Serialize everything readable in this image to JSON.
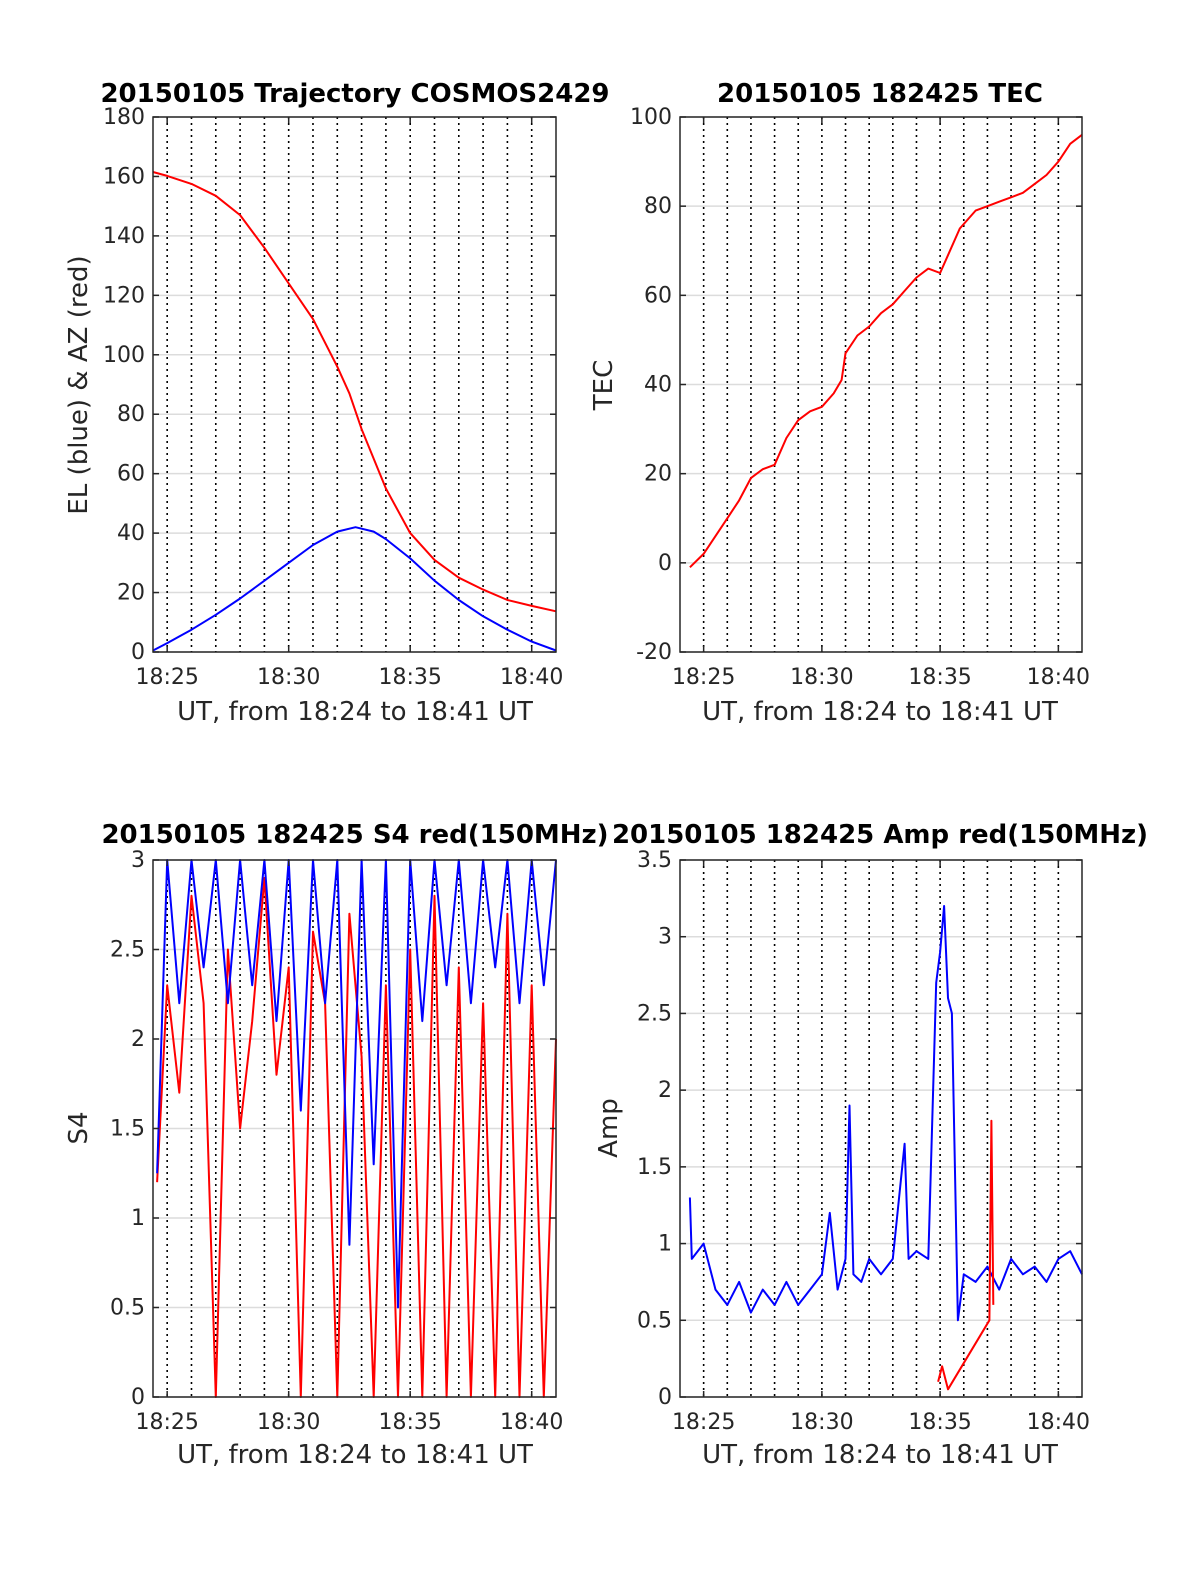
{
  "figure": {
    "background": "#ffffff",
    "colors": {
      "azimuth": "#ff0000",
      "elevation": "#0000ff",
      "s4_red": "#ff0000",
      "s4_blue": "#0000ff",
      "tec": "#ff0000",
      "amp_red": "#ff0000",
      "amp_blue": "#0000ff",
      "grid": "#dcdcdc",
      "vline": "#000000"
    }
  },
  "chart_data": [
    {
      "id": "trajectory",
      "type": "line",
      "title": "20150105 Trajectory COSMOS2429",
      "xlabel": "UT, from 18:24 to 18:41 UT",
      "ylabel": "EL (blue) & AZ (red)",
      "xlim": [
        "18:24:25",
        "18:41:00"
      ],
      "ylim": [
        0,
        180
      ],
      "xticks": [
        "18:25",
        "18:30",
        "18:35",
        "18:40"
      ],
      "yticks": [
        "0",
        "20",
        "40",
        "60",
        "80",
        "100",
        "120",
        "140",
        "160",
        "180"
      ],
      "grid": "horizontal",
      "minute_markers": [
        "18:25",
        "18:26",
        "18:27",
        "18:28",
        "18:29",
        "18:30",
        "18:31",
        "18:32",
        "18:33",
        "18:34",
        "18:35",
        "18:36",
        "18:37",
        "18:38",
        "18:39",
        "18:40"
      ],
      "series": [
        {
          "color": "#ff0000",
          "x": [
            "18:24:25",
            "18:25:00",
            "18:26:00",
            "18:27:00",
            "18:28:00",
            "18:29:00",
            "18:30:00",
            "18:31:00",
            "18:32:00",
            "18:32:30",
            "18:33:00",
            "18:34:00",
            "18:35:00",
            "18:36:00",
            "18:37:00",
            "18:38:00",
            "18:39:00",
            "18:40:00",
            "18:41:00"
          ],
          "y": [
            161.5,
            160.2,
            157.5,
            153.5,
            147,
            136,
            124,
            112,
            96,
            87,
            75,
            55,
            40,
            31,
            25,
            21,
            17.5,
            15.5,
            13.7
          ]
        },
        {
          "color": "#0000ff",
          "x": [
            "18:24:25",
            "18:25:00",
            "18:26:00",
            "18:27:00",
            "18:28:00",
            "18:29:00",
            "18:30:00",
            "18:31:00",
            "18:32:00",
            "18:32:45",
            "18:33:30",
            "18:34:00",
            "18:35:00",
            "18:36:00",
            "18:37:00",
            "18:38:00",
            "18:39:00",
            "18:40:00",
            "18:41:00"
          ],
          "y": [
            0.5,
            3,
            7.5,
            12.5,
            18,
            24,
            30,
            36,
            40.5,
            42,
            40.5,
            38,
            31.5,
            24,
            17.5,
            12,
            7.5,
            3.5,
            0.5
          ]
        }
      ]
    },
    {
      "id": "tec",
      "type": "line",
      "title": "20150105 182425 TEC",
      "xlabel": "UT, from 18:24 to 18:41 UT",
      "ylabel": "TEC",
      "xlim": [
        "18:24:00",
        "18:41:00"
      ],
      "ylim": [
        -20,
        100
      ],
      "xticks": [
        "18:25",
        "18:30",
        "18:35",
        "18:40"
      ],
      "yticks": [
        "-20",
        "0",
        "20",
        "40",
        "60",
        "80",
        "100"
      ],
      "grid": "horizontal",
      "minute_markers": [
        "18:25",
        "18:26",
        "18:27",
        "18:28",
        "18:29",
        "18:30",
        "18:31",
        "18:32",
        "18:33",
        "18:34",
        "18:35",
        "18:36",
        "18:37",
        "18:38",
        "18:39",
        "18:40"
      ],
      "series": [
        {
          "color": "#ff0000",
          "x": [
            "18:24:25",
            "18:25:00",
            "18:25:30",
            "18:26:00",
            "18:26:30",
            "18:27:00",
            "18:27:30",
            "18:28:00",
            "18:28:30",
            "18:29:00",
            "18:29:30",
            "18:30:00",
            "18:30:30",
            "18:30:50",
            "18:31:00",
            "18:31:30",
            "18:32:00",
            "18:32:30",
            "18:33:00",
            "18:33:30",
            "18:34:00",
            "18:34:30",
            "18:35:00",
            "18:35:20",
            "18:35:50",
            "18:36:30",
            "18:37:00",
            "18:37:30",
            "18:38:00",
            "18:38:30",
            "18:39:00",
            "18:39:30",
            "18:40:00",
            "18:40:30",
            "18:41:00"
          ],
          "y": [
            -1,
            2,
            6,
            10,
            14,
            19,
            21,
            22,
            28,
            32,
            34,
            35,
            38,
            41,
            47,
            51,
            53,
            56,
            58,
            61,
            64,
            66,
            65,
            69,
            75,
            79,
            80,
            81,
            82,
            83,
            85,
            87,
            90,
            94,
            96
          ]
        }
      ]
    },
    {
      "id": "s4",
      "type": "line",
      "title": "20150105 182425 S4 red(150MHz)",
      "xlabel": "UT, from 18:24 to 18:41 UT",
      "ylabel": "S4",
      "xlim": [
        "18:24:25",
        "18:41:00"
      ],
      "ylim": [
        0,
        3
      ],
      "xticks": [
        "18:25",
        "18:30",
        "18:35",
        "18:40"
      ],
      "yticks": [
        "0",
        "0.5",
        "1",
        "1.5",
        "2",
        "2.5",
        "3"
      ],
      "grid": "horizontal",
      "minute_markers": [
        "18:25",
        "18:26",
        "18:27",
        "18:28",
        "18:29",
        "18:30",
        "18:31",
        "18:32",
        "18:33",
        "18:34",
        "18:35",
        "18:36",
        "18:37",
        "18:38",
        "18:39",
        "18:40"
      ],
      "series": [
        {
          "color": "#ff0000",
          "x": [
            "18:24:35",
            "18:25:00",
            "18:25:30",
            "18:26:00",
            "18:26:30",
            "18:27:00",
            "18:27:30",
            "18:28:00",
            "18:28:30",
            "18:29:00",
            "18:29:30",
            "18:30:00",
            "18:30:30",
            "18:31:00",
            "18:31:30",
            "18:32:00",
            "18:32:30",
            "18:33:00",
            "18:33:30",
            "18:34:00",
            "18:34:30",
            "18:35:00",
            "18:35:30",
            "18:36:00",
            "18:36:30",
            "18:37:00",
            "18:37:30",
            "18:38:00",
            "18:38:30",
            "18:39:00",
            "18:39:30",
            "18:40:00",
            "18:40:30",
            "18:41:00"
          ],
          "y": [
            1.2,
            2.3,
            1.7,
            2.8,
            2.2,
            0,
            2.5,
            1.5,
            2.1,
            2.9,
            1.8,
            2.4,
            0,
            2.6,
            2.2,
            0,
            2.7,
            1.9,
            0,
            2.3,
            0,
            2.5,
            0,
            2.8,
            0,
            2.4,
            0,
            2.2,
            0,
            2.7,
            0,
            2.3,
            0,
            2.0
          ]
        },
        {
          "color": "#0000ff",
          "x": [
            "18:24:35",
            "18:25:00",
            "18:25:30",
            "18:26:00",
            "18:26:30",
            "18:27:00",
            "18:27:30",
            "18:28:00",
            "18:28:30",
            "18:29:00",
            "18:29:30",
            "18:30:00",
            "18:30:30",
            "18:31:00",
            "18:31:30",
            "18:32:00",
            "18:32:30",
            "18:33:00",
            "18:33:30",
            "18:34:00",
            "18:34:30",
            "18:35:00",
            "18:35:30",
            "18:36:00",
            "18:36:30",
            "18:37:00",
            "18:37:30",
            "18:38:00",
            "18:38:30",
            "18:39:00",
            "18:39:30",
            "18:40:00",
            "18:40:30",
            "18:41:00"
          ],
          "y": [
            1.25,
            3,
            2.2,
            3,
            2.4,
            3,
            2.2,
            3,
            2.3,
            3,
            2.1,
            3,
            1.6,
            3,
            2.2,
            3,
            0.85,
            3,
            1.3,
            3,
            0.5,
            3,
            2.1,
            3,
            2.3,
            3,
            2.2,
            3,
            2.4,
            3,
            2.2,
            3,
            2.3,
            3
          ]
        }
      ]
    },
    {
      "id": "amp",
      "type": "line",
      "title": "20150105 182425 Amp red(150MHz)",
      "xlabel": "UT, from 18:24 to 18:41 UT",
      "ylabel": "Amp",
      "xlim": [
        "18:24:00",
        "18:41:00"
      ],
      "ylim": [
        0,
        3.5
      ],
      "xticks": [
        "18:25",
        "18:30",
        "18:35",
        "18:40"
      ],
      "yticks": [
        "0",
        "0.5",
        "1",
        "1.5",
        "2",
        "2.5",
        "3",
        "3.5"
      ],
      "grid": "horizontal",
      "minute_markers": [
        "18:25",
        "18:26",
        "18:27",
        "18:28",
        "18:29",
        "18:30",
        "18:31",
        "18:32",
        "18:33",
        "18:34",
        "18:35",
        "18:36",
        "18:37",
        "18:38",
        "18:39",
        "18:40"
      ],
      "series": [
        {
          "color": "#0000ff",
          "x": [
            "18:24:25",
            "18:24:30",
            "18:25:00",
            "18:25:30",
            "18:26:00",
            "18:26:30",
            "18:27:00",
            "18:27:30",
            "18:28:00",
            "18:28:30",
            "18:29:00",
            "18:29:30",
            "18:30:00",
            "18:30:20",
            "18:30:40",
            "18:31:00",
            "18:31:10",
            "18:31:20",
            "18:31:40",
            "18:32:00",
            "18:32:30",
            "18:33:00",
            "18:33:30",
            "18:33:40",
            "18:34:00",
            "18:34:30",
            "18:34:50",
            "18:35:00",
            "18:35:10",
            "18:35:20",
            "18:35:30",
            "18:35:45",
            "18:36:00",
            "18:36:30",
            "18:37:00",
            "18:37:30",
            "18:38:00",
            "18:38:30",
            "18:39:00",
            "18:39:30",
            "18:40:00",
            "18:40:30",
            "18:41:00"
          ],
          "y": [
            1.3,
            0.9,
            1.0,
            0.7,
            0.6,
            0.75,
            0.55,
            0.7,
            0.6,
            0.75,
            0.6,
            0.7,
            0.8,
            1.2,
            0.7,
            0.9,
            1.9,
            0.8,
            0.75,
            0.9,
            0.8,
            0.9,
            1.65,
            0.9,
            0.95,
            0.9,
            2.7,
            2.9,
            3.2,
            2.6,
            2.5,
            0.5,
            0.8,
            0.75,
            0.85,
            0.7,
            0.9,
            0.8,
            0.85,
            0.75,
            0.9,
            0.95,
            0.8
          ]
        },
        {
          "color": "#ff0000",
          "x": [
            "18:34:55",
            "18:35:05",
            "18:35:20",
            "18:37:05",
            "18:37:10",
            "18:37:15"
          ],
          "y": [
            0.1,
            0.2,
            0.05,
            0.5,
            1.8,
            0.6
          ]
        }
      ]
    }
  ]
}
